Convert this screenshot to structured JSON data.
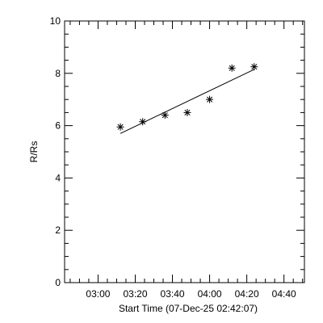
{
  "chart_data": {
    "type": "scatter",
    "xlabel": "Start Time (07-Dec-25 02:42:07)",
    "ylabel": "R/Rs",
    "x_ticks": [
      "03:00",
      "03:20",
      "03:40",
      "04:00",
      "04:20",
      "04:40"
    ],
    "y_ticks": [
      "0",
      "2",
      "4",
      "6",
      "8",
      "10"
    ],
    "xlim": [
      "02:42",
      "04:51"
    ],
    "ylim": [
      0,
      10
    ],
    "grid": false,
    "series": [
      {
        "marker": "asterisk",
        "x": [
          "03:12",
          "03:24",
          "03:36",
          "03:48",
          "04:00",
          "04:12",
          "04:24"
        ],
        "y": [
          5.95,
          6.15,
          6.4,
          6.5,
          7.0,
          8.2,
          8.25
        ]
      }
    ],
    "fit_line": {
      "x": [
        "03:12",
        "04:24"
      ],
      "y": [
        5.7,
        8.15
      ]
    }
  }
}
